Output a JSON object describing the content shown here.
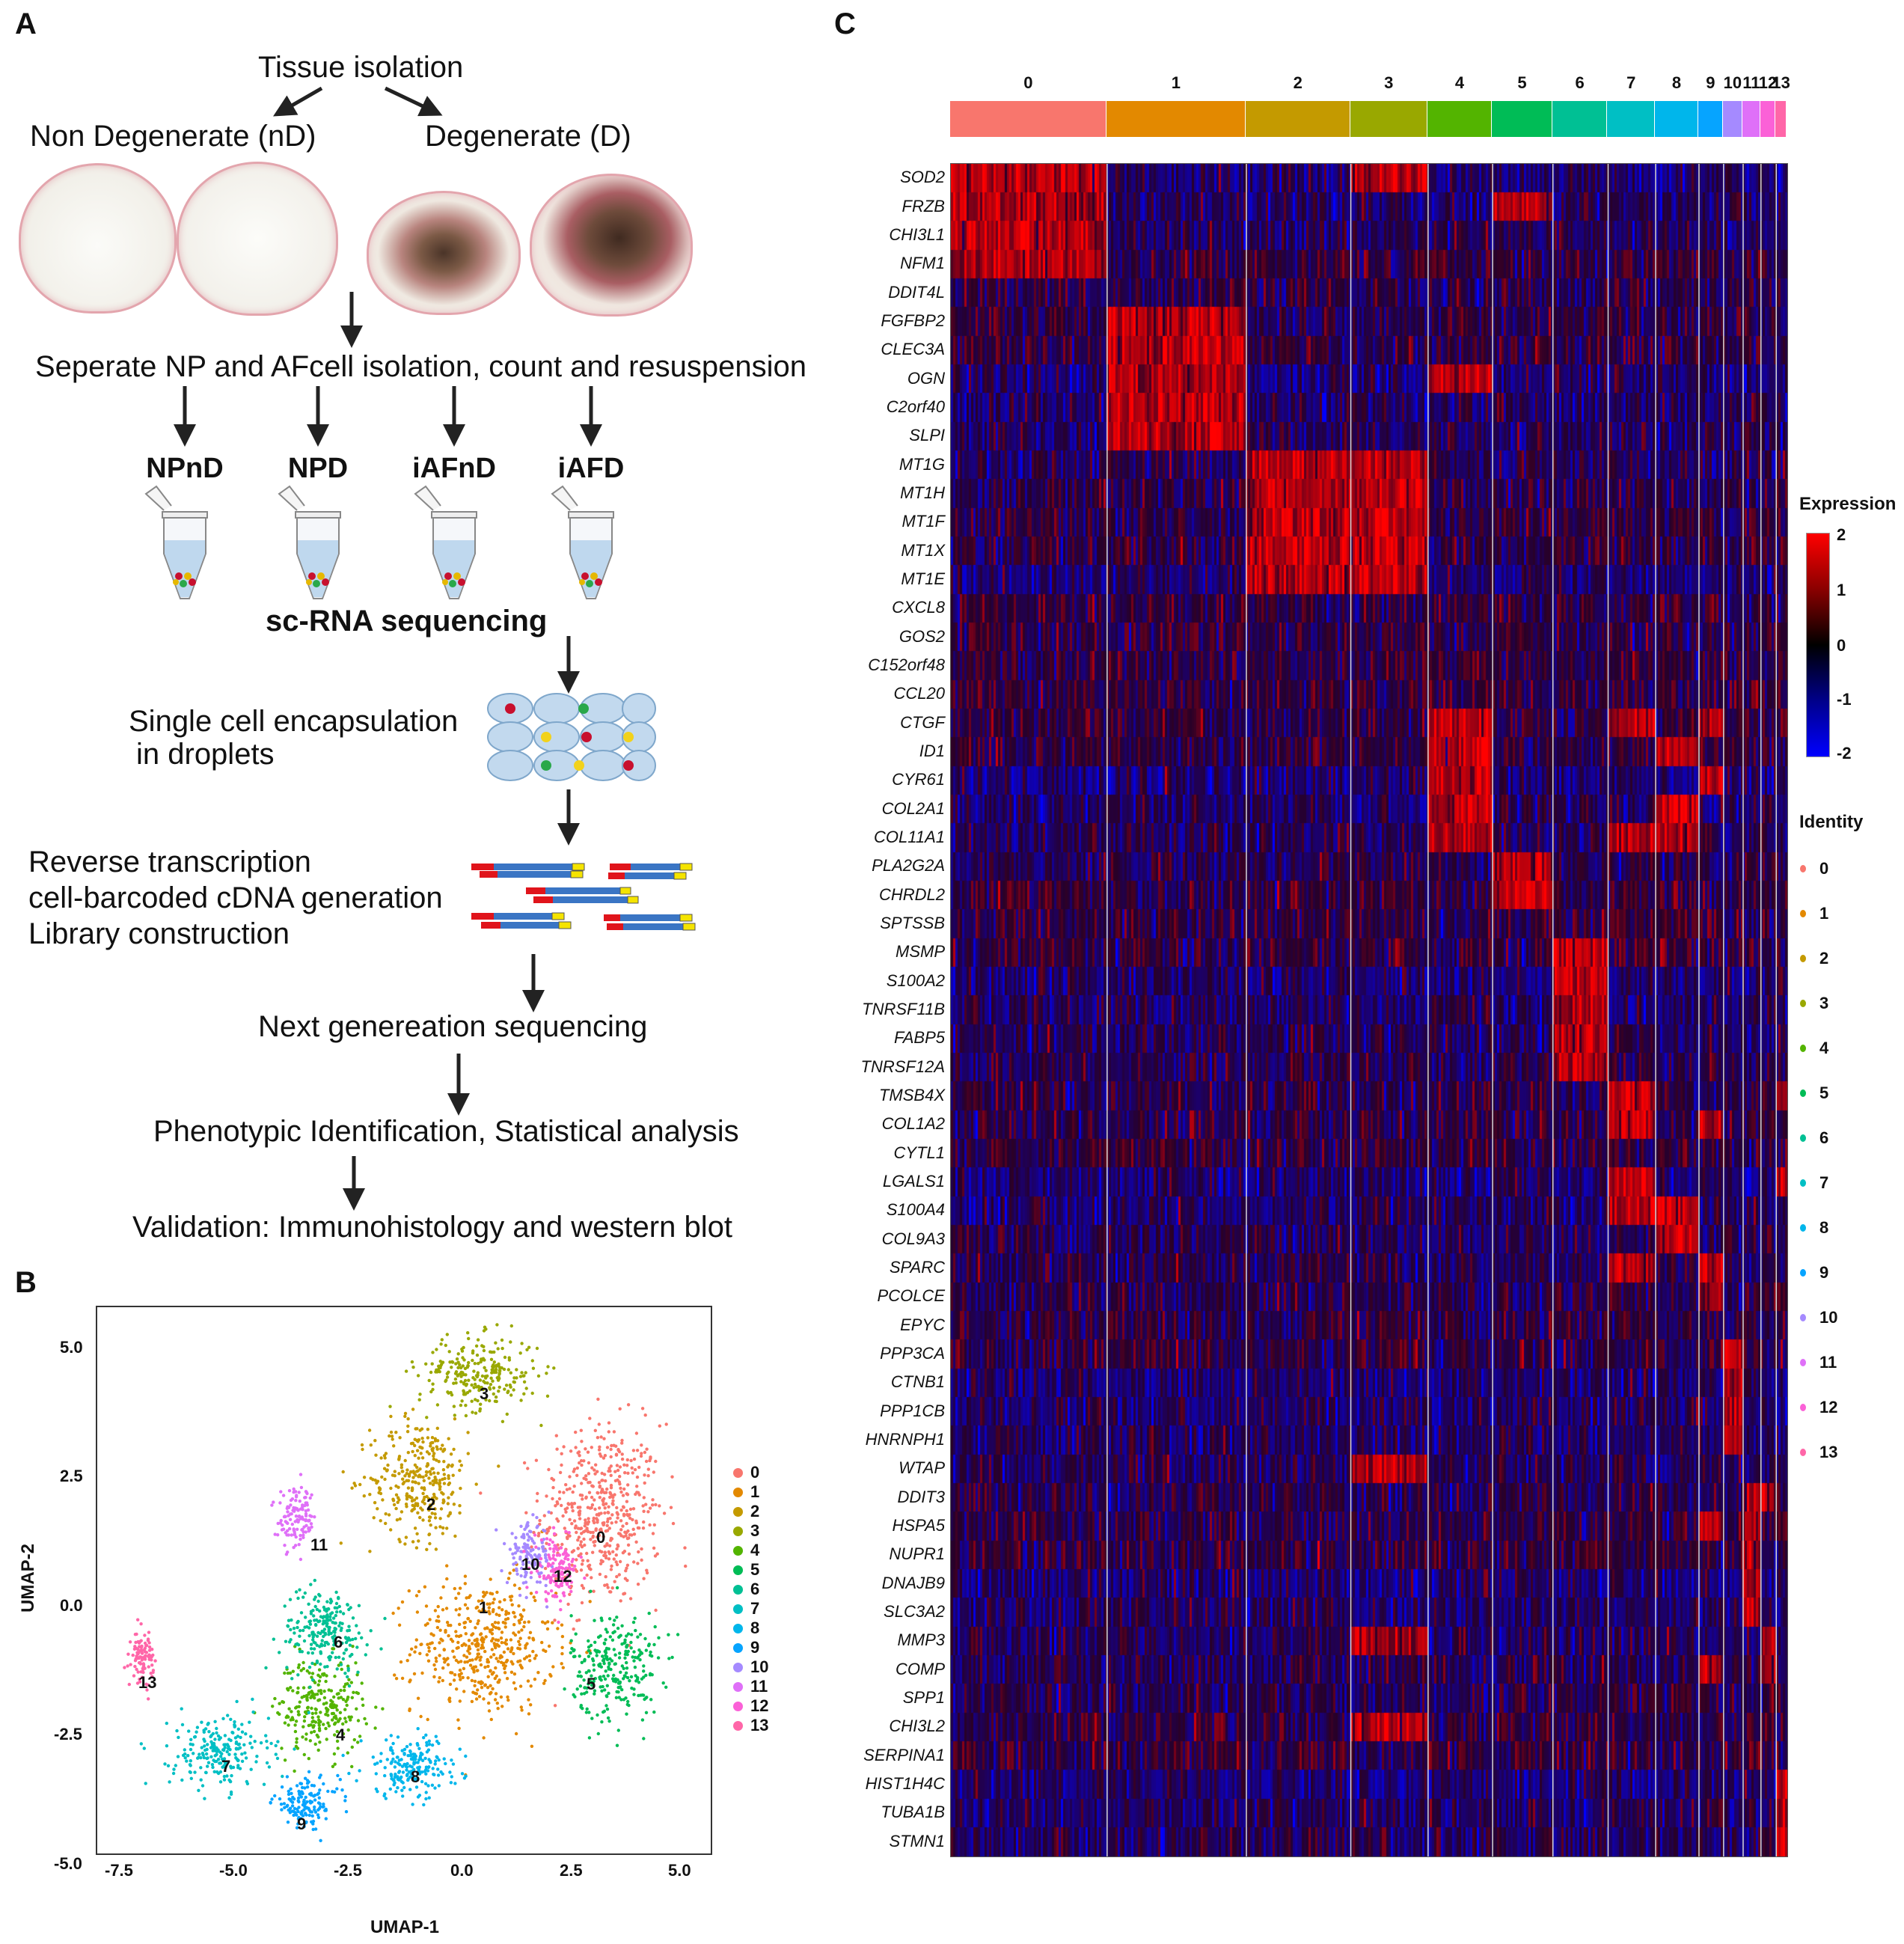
{
  "panels": {
    "a": "A",
    "b": "B",
    "c": "C"
  },
  "workflow": {
    "tissue_isolation": "Tissue isolation",
    "non_degenerate": "Non Degenerate (nD)",
    "degenerate": "Degenerate (D)",
    "separate": "Seperate NP and AFcell isolation, count and resuspension",
    "tubes": [
      "NPnD",
      "NPD",
      "iAFnD",
      "iAFD"
    ],
    "scrna": "sc-RNA sequencing",
    "encapsulation_1": "Single cell encapsulation",
    "encapsulation_2": "in droplets",
    "rt_1": "Reverse transcription",
    "rt_2": "cell-barcoded cDNA generation",
    "rt_3": "Library construction",
    "ngs": "Next genereation sequencing",
    "phenotypic": "Phenotypic Identification, Statistical analysis",
    "validation": "Validation: Immunohistology and western blot"
  },
  "umap": {
    "xlabel": "UMAP-1",
    "ylabel": "UMAP-2",
    "xticks": [
      "-7.5",
      "-5.0",
      "-2.5",
      "0.0",
      "2.5",
      "5.0"
    ],
    "yticks": [
      "5.0",
      "2.5",
      "0.0",
      "-2.5",
      "-5.0"
    ],
    "cluster_labels": [
      "0",
      "1",
      "2",
      "3",
      "4",
      "5",
      "6",
      "7",
      "8",
      "9",
      "10",
      "11",
      "12",
      "13"
    ]
  },
  "heatmap": {
    "clusters": [
      "0",
      "1",
      "2",
      "3",
      "4",
      "5",
      "6",
      "7",
      "8",
      "9",
      "10",
      "11",
      "12",
      "13"
    ],
    "genes": [
      "SOD2",
      "FRZB",
      "CHI3L1",
      "NFM1",
      "DDIT4L",
      "FGFBP2",
      "CLEC3A",
      "OGN",
      "C2orf40",
      "SLPI",
      "MT1G",
      "MT1H",
      "MT1F",
      "MT1X",
      "MT1E",
      "CXCL8",
      "GOS2",
      "C152orf48",
      "CCL20",
      "CTGF",
      "ID1",
      "CYR61",
      "COL2A1",
      "COL11A1",
      "PLA2G2A",
      "CHRDL2",
      "SPTSSB",
      "MSMP",
      "S100A2",
      "TNRSF11B",
      "FABP5",
      "TNRSF12A",
      "TMSB4X",
      "COL1A2",
      "CYTL1",
      "LGALS1",
      "S100A4",
      "COL9A3",
      "SPARC",
      "PCOLCE",
      "EPYC",
      "PPP3CA",
      "CTNB1",
      "PPP1CB",
      "HNRNPH1",
      "WTAP",
      "DDIT3",
      "HSPA5",
      "NUPR1",
      "DNAJB9",
      "SLC3A2",
      "MMP3",
      "COMP",
      "SPP1",
      "CHI3L2",
      "SERPINA1",
      "HIST1H4C",
      "TUBA1B",
      "STMN1"
    ],
    "expression_title": "Expression",
    "expression_ticks": [
      "2",
      "1",
      "0",
      "-1",
      "-2"
    ],
    "identity_title": "Identity"
  },
  "chart_data": [
    {
      "type": "scatter",
      "title": "",
      "xlabel": "UMAP-1",
      "ylabel": "UMAP-2",
      "xlim": [
        -8,
        5.5
      ],
      "ylim": [
        -5.3,
        5.5
      ],
      "legend": "right",
      "series": [
        {
          "name": "0",
          "color": "#F8766D",
          "center": [
            3.1,
            1.4
          ],
          "spread": [
            1.1,
            1.5
          ]
        },
        {
          "name": "1",
          "color": "#E38900",
          "center": [
            0.5,
            -1.2
          ],
          "spread": [
            1.3,
            1.1
          ]
        },
        {
          "name": "2",
          "color": "#C49A00",
          "center": [
            -0.9,
            2.1
          ],
          "spread": [
            0.9,
            1.0
          ]
        },
        {
          "name": "3",
          "color": "#99A800",
          "center": [
            0.4,
            4.2
          ],
          "spread": [
            1.1,
            0.6
          ]
        },
        {
          "name": "4",
          "color": "#53B400",
          "center": [
            -3.1,
            -2.4
          ],
          "spread": [
            0.8,
            0.8
          ]
        },
        {
          "name": "5",
          "color": "#00BC56",
          "center": [
            3.4,
            -1.6
          ],
          "spread": [
            0.8,
            0.9
          ]
        },
        {
          "name": "6",
          "color": "#00C094",
          "center": [
            -3.0,
            -0.9
          ],
          "spread": [
            0.8,
            0.7
          ]
        },
        {
          "name": "7",
          "color": "#00BFC4",
          "center": [
            -5.3,
            -3.3
          ],
          "spread": [
            0.9,
            0.6
          ]
        },
        {
          "name": "8",
          "color": "#00B6EB",
          "center": [
            -1.1,
            -3.6
          ],
          "spread": [
            0.9,
            0.5
          ]
        },
        {
          "name": "9",
          "color": "#06A4FF",
          "center": [
            -3.4,
            -4.3
          ],
          "spread": [
            0.6,
            0.4
          ]
        },
        {
          "name": "10",
          "color": "#A58AFF",
          "center": [
            1.5,
            0.6
          ],
          "spread": [
            0.4,
            0.5
          ]
        },
        {
          "name": "11",
          "color": "#DF70F8",
          "center": [
            -3.6,
            1.3
          ],
          "spread": [
            0.35,
            0.5
          ]
        },
        {
          "name": "12",
          "color": "#FB61D7",
          "center": [
            2.1,
            0.3
          ],
          "spread": [
            0.4,
            0.5
          ]
        },
        {
          "name": "13",
          "color": "#FF66A8",
          "center": [
            -7.0,
            -1.4
          ],
          "spread": [
            0.2,
            0.4
          ]
        }
      ]
    },
    {
      "type": "heatmap",
      "title": "",
      "color_scale": {
        "min": -2,
        "max": 2,
        "low_color": "#0000ff",
        "mid_color": "#000000",
        "high_color": "#ff0000"
      },
      "cluster_widths": [
        0.184,
        0.164,
        0.123,
        0.091,
        0.076,
        0.071,
        0.065,
        0.056,
        0.051,
        0.029,
        0.023,
        0.021,
        0.018,
        0.013
      ],
      "high_expression": {
        "0": [
          "NFM1",
          "SOD2",
          "FRZB",
          "CHI3L1"
        ],
        "1": [
          "FGFBP2",
          "CLEC3A",
          "OGN",
          "C2orf40",
          "SLPI"
        ],
        "2": [
          "MT1G",
          "MT1H",
          "MT1F",
          "MT1X",
          "MT1E"
        ],
        "3": [
          "SOD2",
          "MT1G",
          "MT1H",
          "MT1F",
          "MT1X",
          "MT1E",
          "WTAP",
          "MMP3",
          "CHI3L2"
        ],
        "4": [
          "CTGF",
          "ID1",
          "CYR61",
          "COL2A1",
          "COL11A1",
          "OGN"
        ],
        "5": [
          "FRZB",
          "PLA2G2A",
          "CHRDL2"
        ],
        "6": [
          "MSMP",
          "S100A2",
          "TNRSF11B",
          "FABP5",
          "TNRSF12A"
        ],
        "7": [
          "TMSB4X",
          "COL1A2",
          "LGALS1",
          "S100A4",
          "SPARC",
          "COL11A1",
          "CTGF"
        ],
        "8": [
          "COL2A1",
          "COL11A1",
          "COL9A3",
          "S100A4",
          "ID1"
        ],
        "9": [
          "SPARC",
          "PCOLCE",
          "CYR61",
          "CTGF",
          "HSPA5",
          "COMP",
          "COL1A2"
        ],
        "10": [
          "PPP3CA",
          "CTNB1",
          "PPP1CB",
          "HNRNPH1"
        ],
        "11": [
          "DDIT3",
          "HSPA5",
          "NUPR1",
          "DNAJB9",
          "SLC3A2"
        ],
        "12": [
          "MMP3",
          "COMP",
          "DDIT3"
        ],
        "13": [
          "HIST1H4C",
          "TUBA1B",
          "STMN1",
          "TMSB4X",
          "LGALS1"
        ]
      }
    }
  ]
}
